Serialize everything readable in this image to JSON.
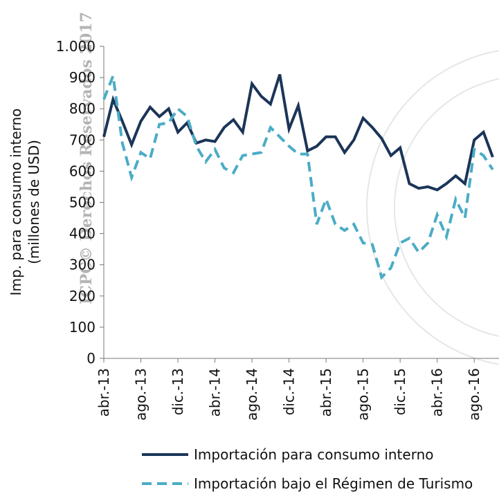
{
  "chart_data": {
    "type": "line",
    "ylabel": [
      "Imp. para consumo interno",
      "(millones de USD)"
    ],
    "watermark": "ICPC© Derechos Reservados 2017",
    "categories": [
      "abr.-13",
      null,
      null,
      null,
      "ago.-13",
      null,
      null,
      null,
      "dic.-13",
      null,
      null,
      null,
      "abr.-14",
      null,
      null,
      null,
      "ago.-14",
      null,
      null,
      null,
      "dic.-14",
      null,
      null,
      null,
      "abr.-15",
      null,
      null,
      null,
      "ago.-15",
      null,
      null,
      null,
      "dic.-15",
      null,
      null,
      null,
      "abr.-16",
      null,
      null,
      null,
      "ago.-16",
      null,
      null
    ],
    "series": [
      {
        "name": "Importación para consumo interno",
        "color": "#1b3558",
        "dash": false,
        "values": [
          710,
          830,
          760,
          685,
          760,
          805,
          775,
          800,
          725,
          755,
          690,
          700,
          695,
          740,
          765,
          725,
          880,
          840,
          815,
          910,
          735,
          810,
          665,
          680,
          710,
          710,
          660,
          700,
          770,
          740,
          705,
          650,
          675,
          560,
          545,
          550,
          540,
          560,
          585,
          560,
          700,
          725,
          645
        ]
      },
      {
        "name": "Importación bajo el Régimen de Turismo",
        "color": "#4bacc6",
        "dash": true,
        "values": [
          830,
          905,
          690,
          580,
          660,
          640,
          750,
          755,
          800,
          775,
          680,
          630,
          670,
          610,
          595,
          650,
          655,
          660,
          740,
          710,
          680,
          655,
          655,
          430,
          510,
          430,
          410,
          430,
          370,
          365,
          260,
          290,
          370,
          385,
          340,
          370,
          460,
          390,
          510,
          450,
          670,
          650,
          605
        ]
      }
    ],
    "ylim": [
      0,
      1000
    ],
    "yticks": [
      0,
      100,
      200,
      300,
      400,
      500,
      600,
      700,
      800,
      900,
      {
        "value": 1000,
        "label": "1.000"
      }
    ],
    "grid": false
  }
}
